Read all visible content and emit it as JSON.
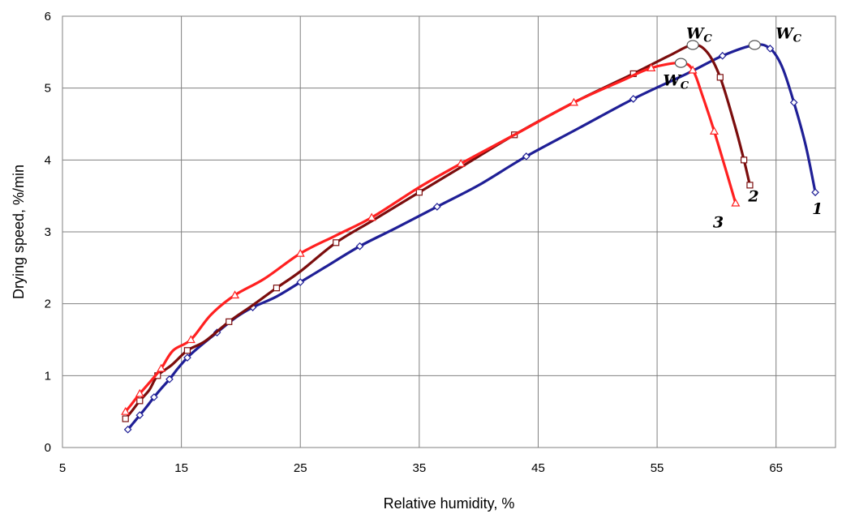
{
  "chart_data": {
    "type": "line",
    "title": "",
    "xlabel": "Relative humidity, %",
    "ylabel": "Drying speed, %/min",
    "xlim": [
      5,
      70
    ],
    "ylim": [
      0,
      6
    ],
    "x_ticks": [
      "5",
      "15",
      "25",
      "35",
      "45",
      "55",
      "65"
    ],
    "y_ticks": [
      "0",
      "1",
      "2",
      "3",
      "4",
      "5",
      "6"
    ],
    "grid": true,
    "legend": "none",
    "critical_point_label": {
      "main": "W",
      "sub": "C"
    },
    "series": [
      {
        "curve_label": "1",
        "color": "#1f1f96",
        "marker": "diamond",
        "points": [
          [
            10.5,
            0.25
          ],
          [
            11.0,
            0.35
          ],
          [
            11.5,
            0.45
          ],
          [
            12.0,
            0.55
          ],
          [
            12.7,
            0.7
          ],
          [
            13.3,
            0.82
          ],
          [
            14.0,
            0.95
          ],
          [
            14.7,
            1.1
          ],
          [
            15.5,
            1.25
          ],
          [
            16.5,
            1.4
          ],
          [
            18.0,
            1.6
          ],
          [
            19.5,
            1.8
          ],
          [
            21.0,
            1.95
          ],
          [
            23.0,
            2.1
          ],
          [
            25.0,
            2.3
          ],
          [
            27.0,
            2.5
          ],
          [
            30.0,
            2.8
          ],
          [
            33.0,
            3.05
          ],
          [
            36.5,
            3.35
          ],
          [
            40.0,
            3.65
          ],
          [
            44.0,
            4.05
          ],
          [
            48.5,
            4.45
          ],
          [
            53.0,
            4.85
          ],
          [
            57.5,
            5.2
          ],
          [
            60.5,
            5.45
          ],
          [
            63.2,
            5.6
          ],
          [
            64.5,
            5.55
          ],
          [
            65.5,
            5.3
          ],
          [
            66.5,
            4.8
          ],
          [
            67.5,
            4.2
          ],
          [
            68.3,
            3.55
          ]
        ],
        "critical_point": [
          63.2,
          5.6
        ]
      },
      {
        "curve_label": "2",
        "color": "#7b0d0d",
        "marker": "square",
        "points": [
          [
            10.3,
            0.4
          ],
          [
            10.8,
            0.5
          ],
          [
            11.5,
            0.65
          ],
          [
            12.3,
            0.8
          ],
          [
            13.0,
            1.0
          ],
          [
            14.2,
            1.15
          ],
          [
            15.5,
            1.35
          ],
          [
            17.0,
            1.48
          ],
          [
            19.0,
            1.75
          ],
          [
            21.0,
            1.98
          ],
          [
            23.0,
            2.22
          ],
          [
            25.0,
            2.45
          ],
          [
            28.0,
            2.85
          ],
          [
            31.0,
            3.15
          ],
          [
            35.0,
            3.55
          ],
          [
            38.5,
            3.9
          ],
          [
            43.0,
            4.35
          ],
          [
            48.0,
            4.8
          ],
          [
            53.0,
            5.2
          ],
          [
            56.0,
            5.45
          ],
          [
            58.0,
            5.6
          ],
          [
            59.2,
            5.5
          ],
          [
            60.3,
            5.15
          ],
          [
            61.5,
            4.5
          ],
          [
            62.3,
            4.0
          ],
          [
            62.8,
            3.65
          ]
        ],
        "critical_point": [
          58.0,
          5.6
        ]
      },
      {
        "curve_label": "3",
        "color": "#ff2020",
        "marker": "triangle",
        "points": [
          [
            10.3,
            0.5
          ],
          [
            10.8,
            0.6
          ],
          [
            11.5,
            0.75
          ],
          [
            12.3,
            0.9
          ],
          [
            13.3,
            1.1
          ],
          [
            14.3,
            1.35
          ],
          [
            15.8,
            1.5
          ],
          [
            17.5,
            1.85
          ],
          [
            19.5,
            2.12
          ],
          [
            22.0,
            2.35
          ],
          [
            25.0,
            2.7
          ],
          [
            28.0,
            2.95
          ],
          [
            31.0,
            3.2
          ],
          [
            35.0,
            3.62
          ],
          [
            38.5,
            3.95
          ],
          [
            43.0,
            4.35
          ],
          [
            48.0,
            4.8
          ],
          [
            52.0,
            5.1
          ],
          [
            54.5,
            5.28
          ],
          [
            57.0,
            5.35
          ],
          [
            58.0,
            5.25
          ],
          [
            58.8,
            4.9
          ],
          [
            59.8,
            4.4
          ],
          [
            60.8,
            3.85
          ],
          [
            61.6,
            3.4
          ]
        ],
        "critical_point": [
          57.0,
          5.35
        ]
      }
    ]
  }
}
